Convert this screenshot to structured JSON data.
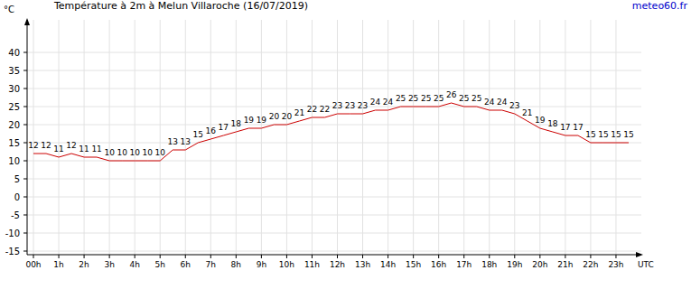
{
  "chart_data": {
    "type": "line",
    "title": "Température à 2m à Melun Villaroche (16/07/2019)",
    "source": "meteo60.fr",
    "y_label": "°C",
    "x_label": "UTC",
    "color": "#cc0000",
    "grid": true,
    "data_labels": true,
    "x": [
      0,
      0.5,
      1,
      1.5,
      2,
      2.5,
      3,
      3.5,
      4,
      4.5,
      5,
      5.5,
      6,
      6.5,
      7,
      7.5,
      8,
      8.5,
      9,
      9.5,
      10,
      10.5,
      11,
      11.5,
      12,
      12.5,
      13,
      13.5,
      14,
      14.5,
      15,
      15.5,
      16,
      16.5,
      17,
      17.5,
      18,
      18.5,
      19,
      19.5,
      20,
      20.5,
      21,
      21.5,
      22,
      22.5,
      23,
      23.5
    ],
    "values": [
      12,
      12,
      11,
      12,
      11,
      11,
      10,
      10,
      10,
      10,
      10,
      13,
      13,
      15,
      16,
      17,
      18,
      19,
      19,
      20,
      20,
      21,
      22,
      22,
      23,
      23,
      23,
      24,
      24,
      25,
      25,
      25,
      25,
      26,
      25,
      25,
      24,
      24,
      23,
      21,
      19,
      18,
      17,
      17,
      15,
      15,
      15,
      15
    ],
    "xlim": [
      -0.25,
      24
    ],
    "xticks": [
      {
        "value": 0,
        "label": "00h"
      },
      {
        "value": 1,
        "label": "1h"
      },
      {
        "value": 2,
        "label": "2h"
      },
      {
        "value": 3,
        "label": "3h"
      },
      {
        "value": 4,
        "label": "4h"
      },
      {
        "value": 5,
        "label": "5h"
      },
      {
        "value": 6,
        "label": "6h"
      },
      {
        "value": 7,
        "label": "7h"
      },
      {
        "value": 8,
        "label": "8h"
      },
      {
        "value": 9,
        "label": "9h"
      },
      {
        "value": 10,
        "label": "10h"
      },
      {
        "value": 11,
        "label": "11h"
      },
      {
        "value": 12,
        "label": "12h"
      },
      {
        "value": 13,
        "label": "13h"
      },
      {
        "value": 14,
        "label": "14h"
      },
      {
        "value": 15,
        "label": "15h"
      },
      {
        "value": 16,
        "label": "16h"
      },
      {
        "value": 17,
        "label": "17h"
      },
      {
        "value": 18,
        "label": "18h"
      },
      {
        "value": 19,
        "label": "19h"
      },
      {
        "value": 20,
        "label": "20h"
      },
      {
        "value": 21,
        "label": "21h"
      },
      {
        "value": 22,
        "label": "22h"
      },
      {
        "value": 23,
        "label": "23h"
      }
    ],
    "ylim": [
      -16,
      49
    ],
    "yticks": [
      -15,
      -10,
      -5,
      0,
      5,
      10,
      15,
      20,
      25,
      30,
      35,
      40
    ]
  }
}
